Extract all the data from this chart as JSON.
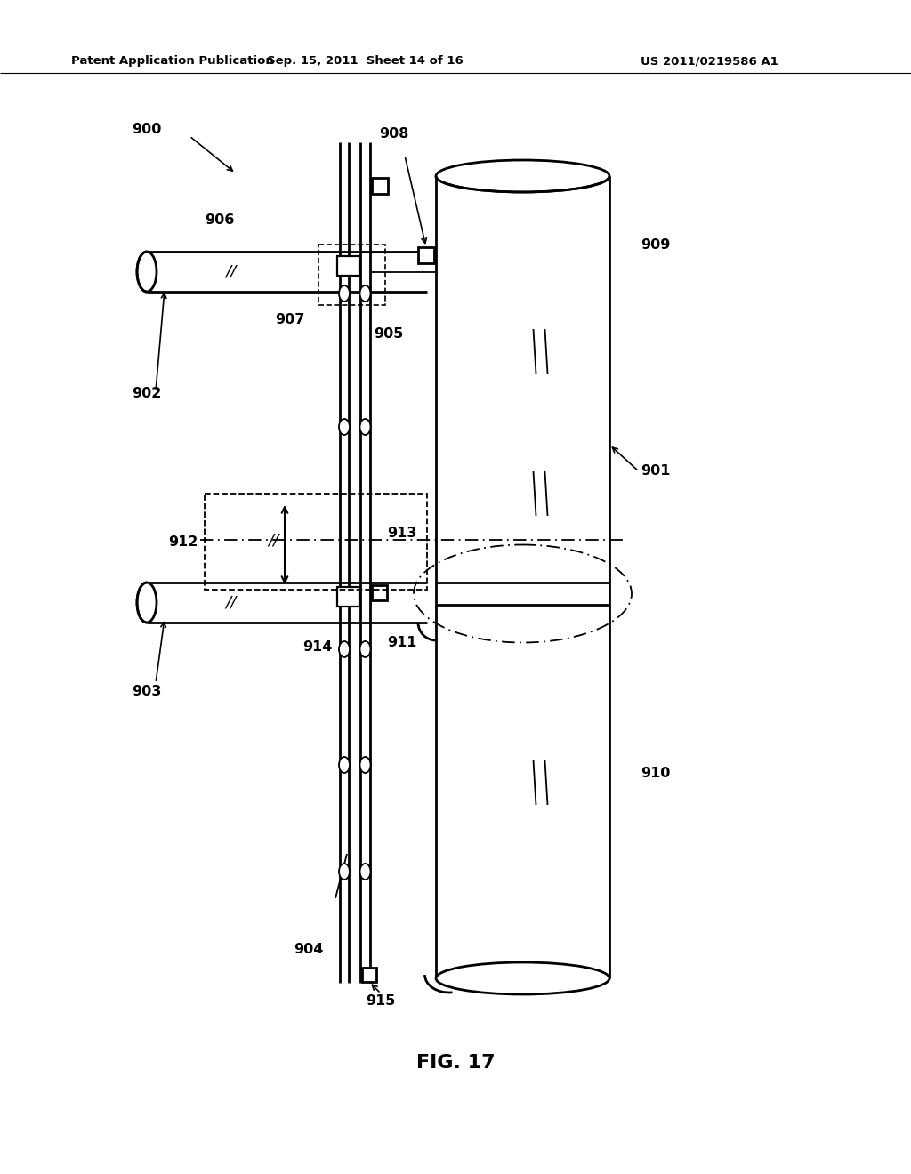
{
  "title": "FIG. 17",
  "header_left": "Patent Application Publication",
  "header_center": "Sep. 15, 2011  Sheet 14 of 16",
  "header_right": "US 2011/0219586 A1",
  "bg_color": "#ffffff",
  "line_color": "#000000",
  "figsize": [
    10.24,
    13.2
  ],
  "dpi": 100
}
